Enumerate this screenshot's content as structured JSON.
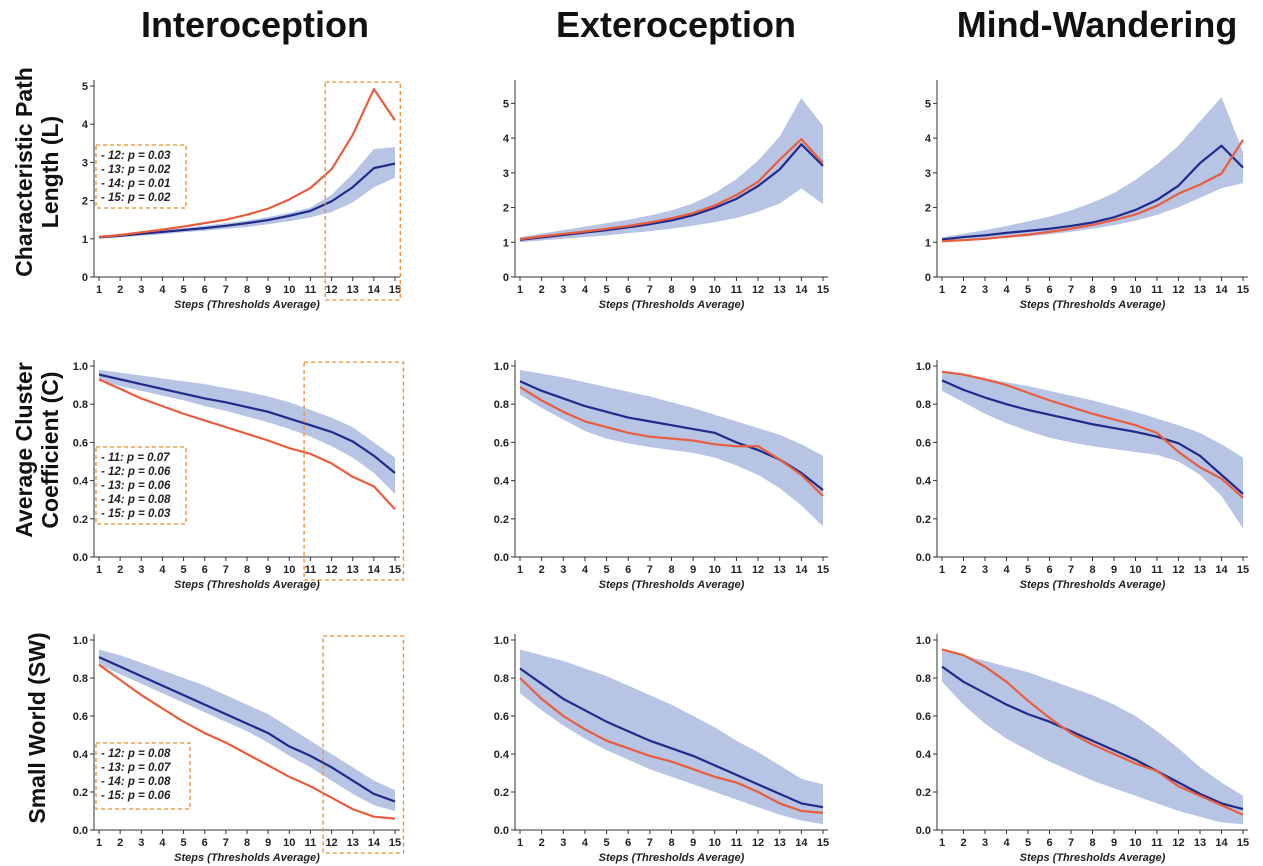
{
  "colors": {
    "band": "#b8c4e4",
    "blue": "#1f2a8a",
    "orange": "#ea5d3c",
    "box": "#ef8a2e",
    "axis": "#333333"
  },
  "column_titles": [
    "Interoception",
    "Exteroception",
    "Mind-Wandering"
  ],
  "row_titles": [
    [
      "Characteristic Path",
      "Length (L)"
    ],
    [
      "Average Cluster",
      "Coefficient (C)"
    ],
    [
      "Small World (SW)"
    ]
  ],
  "chart_data": [
    {
      "type": "line",
      "panel": "L-Interoception",
      "x": [
        1,
        2,
        3,
        4,
        5,
        6,
        7,
        8,
        9,
        10,
        11,
        12,
        13,
        14,
        15
      ],
      "xlabel": "Steps (Thresholds Average)",
      "ylabel": "",
      "ylim": [
        0,
        5
      ],
      "yticks": [
        0,
        1,
        2,
        3,
        4,
        5
      ],
      "ytick_labels": [
        "0",
        "1",
        "2",
        "3",
        "4",
        "5"
      ],
      "band": {
        "upper": [
          1.08,
          1.12,
          1.17,
          1.22,
          1.28,
          1.34,
          1.41,
          1.48,
          1.57,
          1.68,
          1.82,
          2.15,
          2.7,
          3.35,
          3.4
        ],
        "lower": [
          1.0,
          1.04,
          1.08,
          1.12,
          1.17,
          1.21,
          1.26,
          1.31,
          1.38,
          1.46,
          1.56,
          1.7,
          1.95,
          2.35,
          2.6
        ]
      },
      "series": [
        {
          "color": "blue",
          "values": [
            1.04,
            1.08,
            1.13,
            1.18,
            1.23,
            1.28,
            1.34,
            1.41,
            1.49,
            1.6,
            1.73,
            1.98,
            2.35,
            2.85,
            2.97
          ]
        },
        {
          "color": "orange",
          "values": [
            1.05,
            1.1,
            1.17,
            1.24,
            1.32,
            1.41,
            1.5,
            1.63,
            1.79,
            2.03,
            2.33,
            2.82,
            3.72,
            4.92,
            4.1
          ]
        }
      ],
      "highlight": {
        "x_from": 11.7,
        "x_to": 15.25
      },
      "stats_box": [
        "- 12: p = 0.03",
        "- 13: p = 0.02",
        "- 14: p = 0.01",
        "- 15: p = 0.02"
      ]
    },
    {
      "type": "line",
      "panel": "L-Exteroception",
      "x": [
        1,
        2,
        3,
        4,
        5,
        6,
        7,
        8,
        9,
        10,
        11,
        12,
        13,
        14,
        15
      ],
      "xlabel": "Steps (Thresholds Average)",
      "ylabel": "",
      "ylim": [
        0,
        5.5
      ],
      "yticks": [
        0,
        1,
        2,
        3,
        4,
        5
      ],
      "ytick_labels": [
        "0",
        "1",
        "2",
        "3",
        "4",
        "5"
      ],
      "band": {
        "upper": [
          1.15,
          1.25,
          1.35,
          1.45,
          1.55,
          1.65,
          1.77,
          1.92,
          2.12,
          2.42,
          2.82,
          3.35,
          4.05,
          5.15,
          4.35
        ],
        "lower": [
          1.0,
          1.05,
          1.1,
          1.15,
          1.2,
          1.26,
          1.32,
          1.39,
          1.48,
          1.58,
          1.7,
          1.88,
          2.12,
          2.55,
          2.1
        ]
      },
      "series": [
        {
          "color": "blue",
          "values": [
            1.07,
            1.14,
            1.21,
            1.28,
            1.35,
            1.43,
            1.52,
            1.63,
            1.78,
            1.99,
            2.25,
            2.62,
            3.1,
            3.82,
            3.2
          ]
        },
        {
          "color": "orange",
          "values": [
            1.09,
            1.17,
            1.24,
            1.31,
            1.39,
            1.47,
            1.57,
            1.69,
            1.84,
            2.06,
            2.36,
            2.74,
            3.38,
            3.97,
            3.28
          ]
        }
      ]
    },
    {
      "type": "line",
      "panel": "L-Mind-Wandering",
      "x": [
        1,
        2,
        3,
        4,
        5,
        6,
        7,
        8,
        9,
        10,
        11,
        12,
        13,
        14,
        15
      ],
      "xlabel": "Steps (Thresholds Average)",
      "ylabel": "",
      "ylim": [
        0,
        5.5
      ],
      "yticks": [
        0,
        1,
        2,
        3,
        4,
        5
      ],
      "ytick_labels": [
        "0",
        "1",
        "2",
        "3",
        "4",
        "5"
      ],
      "band": {
        "upper": [
          1.15,
          1.25,
          1.35,
          1.47,
          1.6,
          1.74,
          1.92,
          2.14,
          2.42,
          2.8,
          3.25,
          3.78,
          4.48,
          5.18,
          3.6
        ],
        "lower": [
          1.0,
          1.04,
          1.08,
          1.12,
          1.17,
          1.23,
          1.3,
          1.39,
          1.49,
          1.62,
          1.79,
          2.01,
          2.28,
          2.56,
          2.7
        ]
      },
      "series": [
        {
          "color": "blue",
          "values": [
            1.08,
            1.15,
            1.2,
            1.27,
            1.33,
            1.39,
            1.47,
            1.57,
            1.72,
            1.93,
            2.22,
            2.63,
            3.28,
            3.78,
            3.15
          ]
        },
        {
          "color": "orange",
          "values": [
            1.03,
            1.06,
            1.1,
            1.16,
            1.22,
            1.3,
            1.39,
            1.5,
            1.64,
            1.8,
            2.05,
            2.4,
            2.66,
            2.98,
            3.95
          ]
        }
      ]
    },
    {
      "type": "line",
      "panel": "C-Interoception",
      "x": [
        1,
        2,
        3,
        4,
        5,
        6,
        7,
        8,
        9,
        10,
        11,
        12,
        13,
        14,
        15
      ],
      "xlabel": "Steps (Thresholds Average)",
      "ylabel": "",
      "ylim": [
        0,
        1.0
      ],
      "yticks": [
        0,
        0.2,
        0.4,
        0.6,
        0.8,
        1.0
      ],
      "ytick_labels": [
        "0.0",
        "0.2",
        "0.4",
        "0.6",
        "0.8",
        "1.0"
      ],
      "band": {
        "upper": [
          0.98,
          0.965,
          0.95,
          0.935,
          0.92,
          0.905,
          0.885,
          0.865,
          0.84,
          0.81,
          0.77,
          0.73,
          0.68,
          0.6,
          0.52
        ],
        "lower": [
          0.92,
          0.895,
          0.87,
          0.845,
          0.82,
          0.79,
          0.765,
          0.735,
          0.705,
          0.67,
          0.63,
          0.58,
          0.52,
          0.44,
          0.33
        ]
      },
      "series": [
        {
          "color": "blue",
          "values": [
            0.955,
            0.93,
            0.905,
            0.88,
            0.855,
            0.83,
            0.81,
            0.785,
            0.76,
            0.725,
            0.69,
            0.655,
            0.605,
            0.53,
            0.44
          ]
        },
        {
          "color": "orange",
          "values": [
            0.93,
            0.88,
            0.83,
            0.79,
            0.75,
            0.715,
            0.68,
            0.645,
            0.61,
            0.57,
            0.54,
            0.49,
            0.42,
            0.37,
            0.25
          ]
        }
      ],
      "highlight": {
        "x_from": 10.7,
        "x_to": 15.4
      },
      "stats_box": [
        "- 11: p = 0.07",
        "- 12: p = 0.06",
        "- 13: p = 0.06",
        "- 14: p = 0.08",
        "- 15: p = 0.03"
      ]
    },
    {
      "type": "line",
      "panel": "C-Exteroception",
      "x": [
        1,
        2,
        3,
        4,
        5,
        6,
        7,
        8,
        9,
        10,
        11,
        12,
        13,
        14,
        15
      ],
      "xlabel": "Steps (Thresholds Average)",
      "ylabel": "",
      "ylim": [
        0,
        1.0
      ],
      "yticks": [
        0,
        0.2,
        0.4,
        0.6,
        0.8,
        1.0
      ],
      "ytick_labels": [
        "0.0",
        "0.2",
        "0.4",
        "0.6",
        "0.8",
        "1.0"
      ],
      "band": {
        "upper": [
          0.98,
          0.96,
          0.94,
          0.915,
          0.89,
          0.865,
          0.84,
          0.81,
          0.78,
          0.745,
          0.71,
          0.675,
          0.64,
          0.59,
          0.53
        ],
        "lower": [
          0.85,
          0.78,
          0.72,
          0.66,
          0.62,
          0.595,
          0.575,
          0.56,
          0.545,
          0.52,
          0.48,
          0.43,
          0.36,
          0.27,
          0.16
        ]
      },
      "series": [
        {
          "color": "blue",
          "values": [
            0.92,
            0.87,
            0.83,
            0.79,
            0.76,
            0.73,
            0.71,
            0.69,
            0.67,
            0.65,
            0.6,
            0.56,
            0.51,
            0.44,
            0.35
          ]
        },
        {
          "color": "orange",
          "values": [
            0.89,
            0.82,
            0.76,
            0.71,
            0.68,
            0.65,
            0.63,
            0.62,
            0.61,
            0.59,
            0.58,
            0.58,
            0.51,
            0.43,
            0.32
          ]
        }
      ]
    },
    {
      "type": "line",
      "panel": "C-Mind-Wandering",
      "x": [
        1,
        2,
        3,
        4,
        5,
        6,
        7,
        8,
        9,
        10,
        11,
        12,
        13,
        14,
        15
      ],
      "xlabel": "Steps (Thresholds Average)",
      "ylabel": "",
      "ylim": [
        0,
        1.0
      ],
      "yticks": [
        0,
        0.2,
        0.4,
        0.6,
        0.8,
        1.0
      ],
      "ytick_labels": [
        "0.0",
        "0.2",
        "0.4",
        "0.6",
        "0.8",
        "1.0"
      ],
      "band": {
        "upper": [
          0.97,
          0.955,
          0.935,
          0.915,
          0.895,
          0.87,
          0.845,
          0.82,
          0.79,
          0.76,
          0.725,
          0.69,
          0.65,
          0.59,
          0.52
        ],
        "lower": [
          0.87,
          0.81,
          0.75,
          0.7,
          0.66,
          0.625,
          0.6,
          0.58,
          0.565,
          0.55,
          0.535,
          0.5,
          0.43,
          0.32,
          0.15
        ]
      },
      "series": [
        {
          "color": "blue",
          "values": [
            0.925,
            0.875,
            0.835,
            0.8,
            0.77,
            0.745,
            0.72,
            0.695,
            0.675,
            0.655,
            0.63,
            0.595,
            0.53,
            0.43,
            0.33
          ]
        },
        {
          "color": "orange",
          "values": [
            0.97,
            0.955,
            0.93,
            0.9,
            0.86,
            0.82,
            0.785,
            0.75,
            0.72,
            0.69,
            0.65,
            0.55,
            0.47,
            0.41,
            0.31
          ]
        }
      ]
    },
    {
      "type": "line",
      "panel": "SW-Interoception",
      "x": [
        1,
        2,
        3,
        4,
        5,
        6,
        7,
        8,
        9,
        10,
        11,
        12,
        13,
        14,
        15
      ],
      "xlabel": "Steps (Thresholds Average)",
      "ylabel": "",
      "ylim": [
        0,
        1.0
      ],
      "yticks": [
        0,
        0.2,
        0.4,
        0.6,
        0.8,
        1.0
      ],
      "ytick_labels": [
        "0.0",
        "0.2",
        "0.4",
        "0.6",
        "0.8",
        "1.0"
      ],
      "band": {
        "upper": [
          0.95,
          0.92,
          0.88,
          0.84,
          0.8,
          0.76,
          0.71,
          0.66,
          0.61,
          0.54,
          0.47,
          0.4,
          0.33,
          0.26,
          0.21
        ],
        "lower": [
          0.87,
          0.82,
          0.77,
          0.72,
          0.67,
          0.62,
          0.57,
          0.52,
          0.46,
          0.39,
          0.33,
          0.26,
          0.19,
          0.13,
          0.1
        ]
      },
      "series": [
        {
          "color": "blue",
          "values": [
            0.91,
            0.86,
            0.81,
            0.76,
            0.71,
            0.66,
            0.61,
            0.56,
            0.51,
            0.44,
            0.39,
            0.33,
            0.26,
            0.19,
            0.15
          ]
        },
        {
          "color": "orange",
          "values": [
            0.87,
            0.79,
            0.71,
            0.64,
            0.57,
            0.51,
            0.46,
            0.4,
            0.34,
            0.28,
            0.23,
            0.17,
            0.11,
            0.07,
            0.06
          ]
        }
      ],
      "highlight": {
        "x_from": 11.6,
        "x_to": 15.4
      },
      "stats_box": [
        "- 12: p = 0.08",
        "- 13: p = 0.07",
        "- 14: p = 0.08",
        "- 15: p = 0.06"
      ]
    },
    {
      "type": "line",
      "panel": "SW-Exteroception",
      "x": [
        1,
        2,
        3,
        4,
        5,
        6,
        7,
        8,
        9,
        10,
        11,
        12,
        13,
        14,
        15
      ],
      "xlabel": "Steps (Thresholds Average)",
      "ylabel": "",
      "ylim": [
        0,
        1.0
      ],
      "yticks": [
        0,
        0.2,
        0.4,
        0.6,
        0.8,
        1.0
      ],
      "ytick_labels": [
        "0.0",
        "0.2",
        "0.4",
        "0.6",
        "0.8",
        "1.0"
      ],
      "band": {
        "upper": [
          0.95,
          0.92,
          0.89,
          0.85,
          0.81,
          0.76,
          0.71,
          0.66,
          0.6,
          0.54,
          0.47,
          0.41,
          0.34,
          0.27,
          0.24
        ],
        "lower": [
          0.72,
          0.63,
          0.55,
          0.48,
          0.42,
          0.37,
          0.32,
          0.28,
          0.24,
          0.2,
          0.16,
          0.12,
          0.08,
          0.05,
          0.03
        ]
      },
      "series": [
        {
          "color": "blue",
          "values": [
            0.85,
            0.77,
            0.69,
            0.63,
            0.57,
            0.52,
            0.47,
            0.43,
            0.39,
            0.34,
            0.29,
            0.24,
            0.19,
            0.14,
            0.12
          ]
        },
        {
          "color": "orange",
          "values": [
            0.8,
            0.69,
            0.6,
            0.53,
            0.47,
            0.43,
            0.39,
            0.36,
            0.32,
            0.28,
            0.25,
            0.2,
            0.14,
            0.1,
            0.09
          ]
        }
      ]
    },
    {
      "type": "line",
      "panel": "SW-Mind-Wandering",
      "x": [
        1,
        2,
        3,
        4,
        5,
        6,
        7,
        8,
        9,
        10,
        11,
        12,
        13,
        14,
        15
      ],
      "xlabel": "Steps (Thresholds Average)",
      "ylabel": "",
      "ylim": [
        0,
        1.0
      ],
      "yticks": [
        0,
        0.2,
        0.4,
        0.6,
        0.8,
        1.0
      ],
      "ytick_labels": [
        "0.0",
        "0.2",
        "0.4",
        "0.6",
        "0.8",
        "1.0"
      ],
      "band": {
        "upper": [
          0.94,
          0.92,
          0.89,
          0.86,
          0.83,
          0.79,
          0.75,
          0.71,
          0.66,
          0.6,
          0.52,
          0.43,
          0.33,
          0.25,
          0.18
        ],
        "lower": [
          0.78,
          0.66,
          0.56,
          0.48,
          0.42,
          0.36,
          0.31,
          0.26,
          0.22,
          0.18,
          0.14,
          0.1,
          0.07,
          0.04,
          0.03
        ]
      },
      "series": [
        {
          "color": "blue",
          "values": [
            0.86,
            0.78,
            0.72,
            0.66,
            0.61,
            0.57,
            0.52,
            0.47,
            0.42,
            0.37,
            0.31,
            0.25,
            0.19,
            0.14,
            0.11
          ]
        },
        {
          "color": "orange",
          "values": [
            0.95,
            0.92,
            0.86,
            0.78,
            0.68,
            0.59,
            0.51,
            0.45,
            0.4,
            0.35,
            0.31,
            0.23,
            0.18,
            0.13,
            0.08
          ]
        }
      ]
    }
  ]
}
